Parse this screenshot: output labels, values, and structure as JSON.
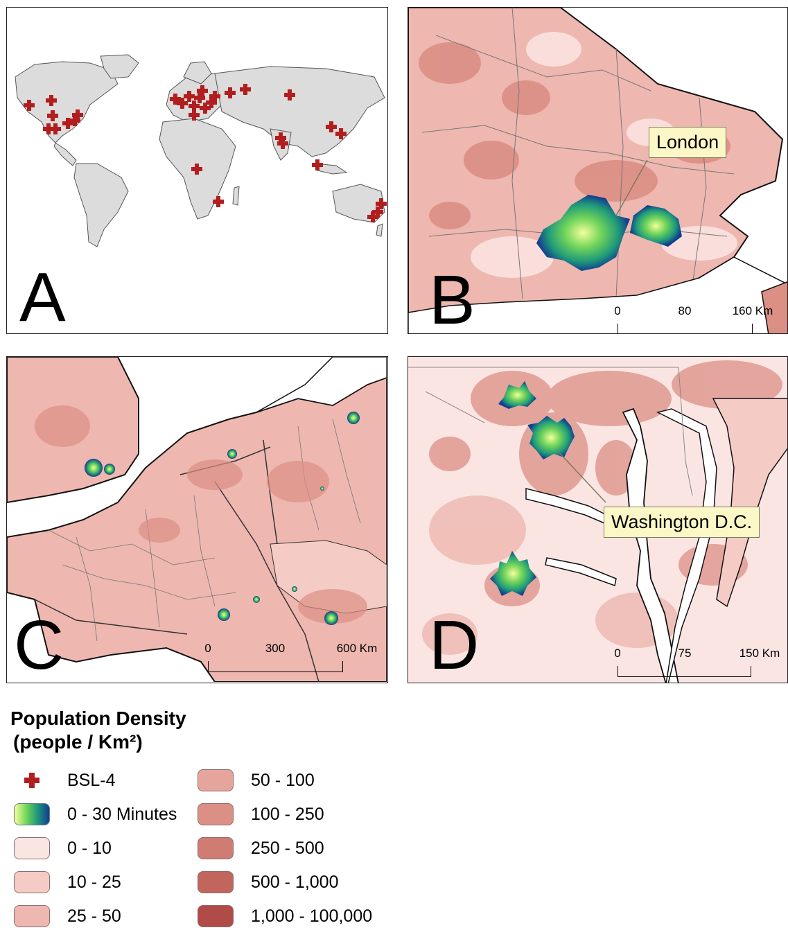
{
  "panels": {
    "a": {
      "letter": "A"
    },
    "b": {
      "letter": "B",
      "callout": "London",
      "scale": {
        "t0": "0",
        "t1": "80",
        "t2": "160 Km"
      }
    },
    "c": {
      "letter": "C",
      "scale": {
        "t0": "0",
        "t1": "300",
        "t2": "600 Km"
      }
    },
    "d": {
      "letter": "D",
      "callout": "Washington D.C.",
      "scale": {
        "t0": "0",
        "t1": "75",
        "t2": "150 Km"
      }
    }
  },
  "legend": {
    "title_line1": "Population Density",
    "title_line2": "(people / Km²)",
    "items": [
      {
        "label": "BSL-4",
        "icon": "red-cross-icon",
        "color": "#b21e1e"
      },
      {
        "label": "0 - 30 Minutes",
        "icon": "gradient-swatch",
        "color": "#1a6fb0"
      },
      {
        "label": "0 - 10",
        "color": "#fbe5e3"
      },
      {
        "label": "10 - 25",
        "color": "#f5cbc6"
      },
      {
        "label": "25 - 50",
        "color": "#eeb7af"
      },
      {
        "label": "50 - 100",
        "color": "#e6a59c"
      },
      {
        "label": "100 - 250",
        "color": "#db8f85"
      },
      {
        "label": "250 - 500",
        "color": "#cf7c72"
      },
      {
        "label": "500 - 1,000",
        "color": "#c1655d"
      },
      {
        "label": "1,000 - 100,000",
        "color": "#b04b48"
      }
    ]
  }
}
